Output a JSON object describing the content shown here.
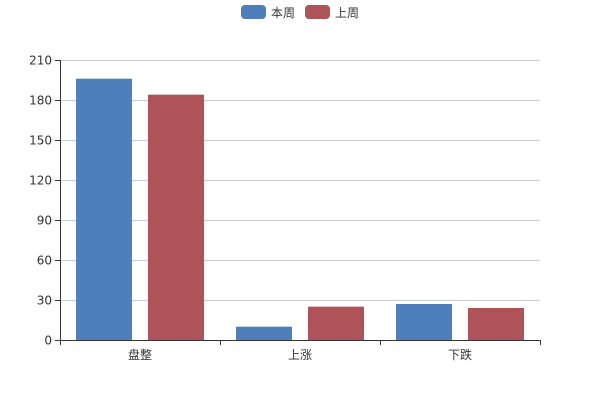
{
  "chart_data": {
    "type": "bar",
    "categories": [
      "盘整",
      "上涨",
      "下跌"
    ],
    "series": [
      {
        "name": "本周",
        "color": "#4e7fbb",
        "values": [
          196,
          10,
          27
        ]
      },
      {
        "name": "上周",
        "color": "#ae5357",
        "values": [
          184,
          25,
          24
        ]
      }
    ],
    "ylim": [
      0,
      210
    ],
    "yticks": [
      0,
      30,
      60,
      90,
      120,
      150,
      180,
      210
    ],
    "grid": true,
    "legend": "top-center",
    "title": "",
    "xlabel": "",
    "ylabel": ""
  }
}
